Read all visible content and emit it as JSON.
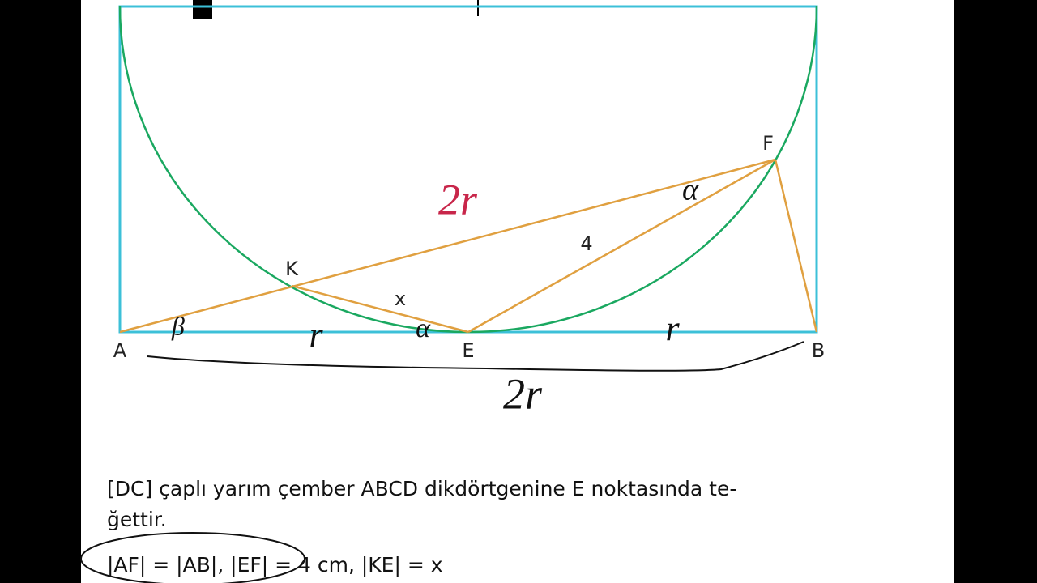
{
  "points": [
    "A",
    "B",
    "E",
    "F",
    "K"
  ],
  "segment_labels": [
    "x",
    "4"
  ],
  "annotations": [
    "2r",
    "2r",
    "r",
    "r",
    "α",
    "α",
    "β"
  ],
  "problem": {
    "lines": [
      "[DC] çaplı yarım çember ABCD dikdörtgenine E noktasında te-",
      "ğettir.",
      "|AF| = |AB|, |EF| = 4 cm, |KE| = x"
    ]
  }
}
